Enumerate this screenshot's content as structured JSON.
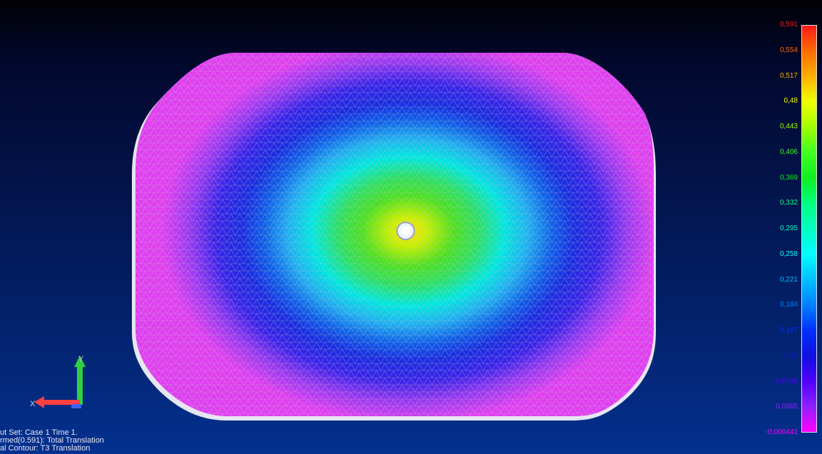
{
  "app": {
    "view": "deformed-contour-plot"
  },
  "legend": {
    "labels": [
      "0,591",
      "0,554",
      "0,517",
      "0,48",
      "0,443",
      "0,406",
      "0,369",
      "0,332",
      "0,295",
      "0,258",
      "0,221",
      "0,184",
      "0,147",
      "0,11",
      "0,0736",
      "0,0365",
      "-0,000441"
    ],
    "colors": [
      "#ff1a1a",
      "#ff6a00",
      "#ffb000",
      "#f0ff00",
      "#a0ff00",
      "#40ff20",
      "#10f020",
      "#00ff80",
      "#00ffc0",
      "#00ffff",
      "#00c0ff",
      "#0080ff",
      "#0030ff",
      "#1010e0",
      "#5000ff",
      "#9020ff",
      "#ff00ff"
    ],
    "max_value": 0.591,
    "min_value": -0.000441
  },
  "info": {
    "output_set": "ut Set: Case 1 Time 1.",
    "deformed": "rmed(0.591): Total Translation",
    "contour": "al Contour: T3 Translation"
  },
  "triad": {
    "y_label": "Y",
    "x_label": "X"
  }
}
